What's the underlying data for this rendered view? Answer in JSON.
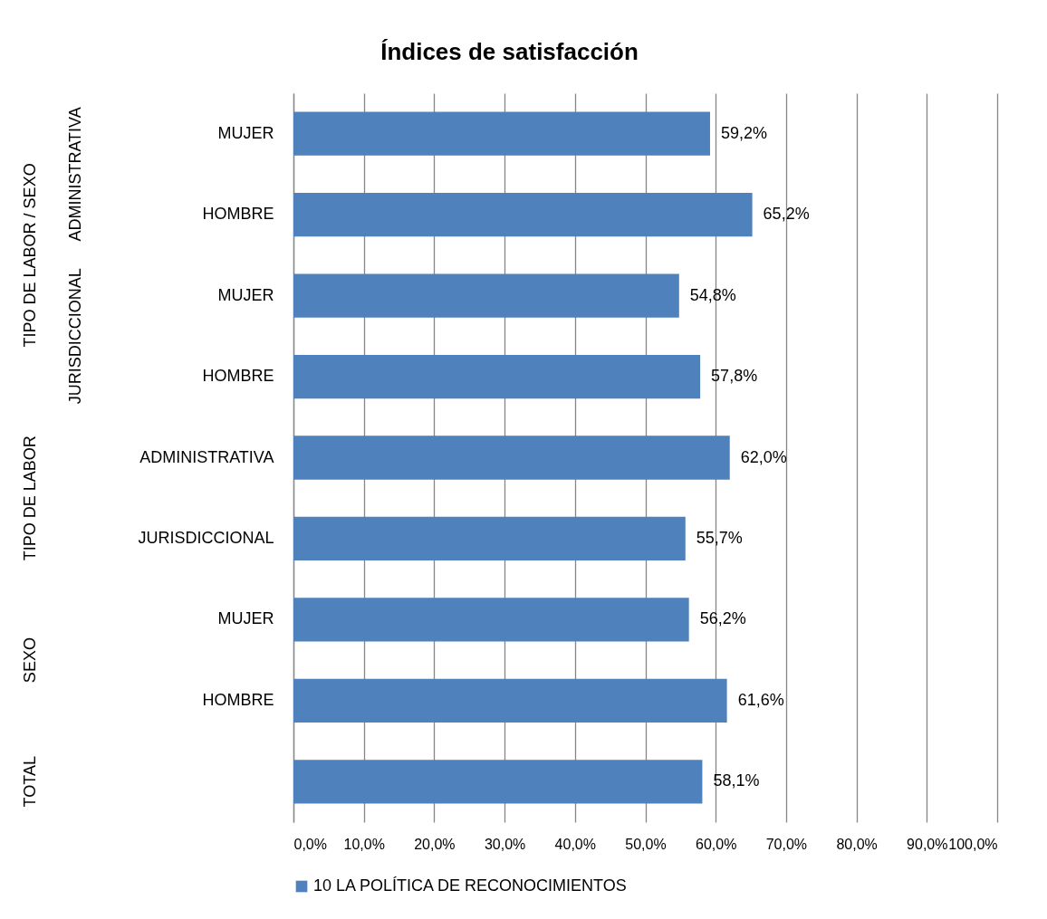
{
  "chart_data": {
    "type": "bar",
    "orientation": "horizontal",
    "title": "Índices de satisfacción",
    "categories": [
      "MUJER",
      "HOMBRE",
      "MUJER",
      "HOMBRE",
      "ADMINISTRATIVA",
      "JURISDICCIONAL",
      "MUJER",
      "HOMBRE",
      null
    ],
    "series": [
      {
        "name": "10 LA POLÍTICA DE RECONOCIMIENTOS",
        "color": "#4f81bd",
        "values": [
          59.2,
          65.2,
          54.8,
          57.8,
          62.0,
          55.7,
          56.2,
          61.6,
          58.1
        ],
        "value_labels": [
          "59,2%",
          "65,2%",
          "54,8%",
          "57,8%",
          "62,0%",
          "55,7%",
          "56,2%",
          "61,6%",
          "58,1%"
        ]
      }
    ],
    "annotations": [
      "TIPO DE LABOR / SEXO",
      "ADMINISTRATIVA",
      "JURISDICCIONAL",
      "TIPO DE LABOR",
      "SEXO",
      "TOTAL"
    ],
    "xlim": [
      0,
      100
    ],
    "xticks": [
      {
        "value": 0,
        "label": "0,0%"
      },
      {
        "value": 10,
        "label": "10,0%"
      },
      {
        "value": 20,
        "label": "20,0%"
      },
      {
        "value": 30,
        "label": "30,0%"
      },
      {
        "value": 40,
        "label": "40,0%"
      },
      {
        "value": 50,
        "label": "50,0%"
      },
      {
        "value": 60,
        "label": "60,0%"
      },
      {
        "value": 70,
        "label": "70,0%"
      },
      {
        "value": 80,
        "label": "80,0%"
      },
      {
        "value": 90,
        "label": "90,0%"
      },
      {
        "value": 100,
        "label": "100,0%"
      }
    ],
    "grid": "x",
    "legend": "bottom"
  }
}
